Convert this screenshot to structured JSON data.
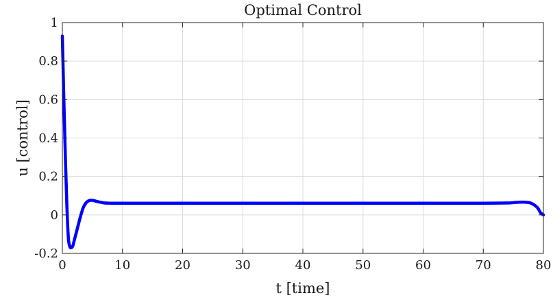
{
  "chart_data": {
    "type": "line",
    "title": "Optimal Control",
    "xlabel": "t [time]",
    "ylabel": "u [control]",
    "xlim": [
      0,
      80
    ],
    "ylim": [
      -0.2,
      1
    ],
    "xticks": [
      0,
      10,
      20,
      30,
      40,
      50,
      60,
      70,
      80
    ],
    "yticks": [
      -0.2,
      0,
      0.2,
      0.4,
      0.6,
      0.8,
      1
    ],
    "xtick_labels": [
      "0",
      "10",
      "20",
      "30",
      "40",
      "50",
      "60",
      "70",
      "80"
    ],
    "ytick_labels": [
      "-0.2",
      "0",
      "0.2",
      "0.4",
      "0.6",
      "0.8",
      "1"
    ],
    "grid": true,
    "line_color": "#0000ff",
    "series": [
      {
        "x": [
          0,
          0.25,
          0.5,
          0.75,
          1.0,
          1.25,
          1.5,
          1.75,
          2.0,
          2.5,
          3.0,
          3.5,
          4.0,
          4.5,
          5.0,
          6.0,
          7.0,
          8.0,
          10,
          20,
          30,
          40,
          50,
          60,
          70,
          74,
          75,
          76,
          77,
          78,
          79,
          79.5,
          80
        ],
        "y": [
          0.93,
          0.6,
          0.3,
          0.05,
          -0.12,
          -0.165,
          -0.17,
          -0.16,
          -0.13,
          -0.07,
          -0.01,
          0.04,
          0.065,
          0.075,
          0.076,
          0.068,
          0.062,
          0.061,
          0.061,
          0.061,
          0.061,
          0.061,
          0.061,
          0.061,
          0.061,
          0.062,
          0.064,
          0.066,
          0.066,
          0.06,
          0.038,
          0.012,
          0.0
        ]
      }
    ]
  }
}
